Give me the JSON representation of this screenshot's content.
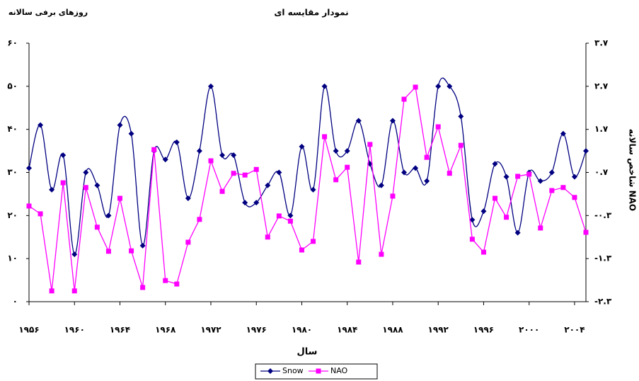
{
  "chart_data": {
    "type": "line",
    "title": "نمودار مقایسه ای",
    "y_label": "روزهای برفی سالانه",
    "y2_label": "شاخص سالانه NAO",
    "x_label": "سال",
    "x": [
      1956,
      1957,
      1958,
      1959,
      1960,
      1961,
      1962,
      1963,
      1964,
      1965,
      1966,
      1967,
      1968,
      1969,
      1970,
      1971,
      1972,
      1973,
      1974,
      1975,
      1976,
      1977,
      1978,
      1979,
      1980,
      1981,
      1982,
      1983,
      1984,
      1985,
      1986,
      1987,
      1988,
      1989,
      1990,
      1991,
      1992,
      1993,
      1994,
      1995,
      1996,
      1997,
      1998,
      1999,
      2000,
      2001,
      2002,
      2003,
      2004,
      2005
    ],
    "xlim": [
      1956,
      2005
    ],
    "xticks": [
      {
        "value": 1956,
        "label": "۱۹۵۶"
      },
      {
        "value": 1960,
        "label": "۱۹۶۰"
      },
      {
        "value": 1964,
        "label": "۱۹۶۴"
      },
      {
        "value": 1968,
        "label": "۱۹۶۸"
      },
      {
        "value": 1972,
        "label": "۱۹۷۲"
      },
      {
        "value": 1976,
        "label": "۱۹۷۶"
      },
      {
        "value": 1980,
        "label": "۱۹۸۰"
      },
      {
        "value": 1984,
        "label": "۱۹۸۴"
      },
      {
        "value": 1988,
        "label": "۱۹۸۸"
      },
      {
        "value": 1992,
        "label": "۱۹۹۲"
      },
      {
        "value": 1996,
        "label": "۱۹۹۶"
      },
      {
        "value": 2000,
        "label": "۲۰۰۰"
      },
      {
        "value": 2004,
        "label": "۲۰۰۴"
      }
    ],
    "ylim": [
      0,
      60
    ],
    "yticks": [
      {
        "value": 0,
        "label": "۰"
      },
      {
        "value": 10,
        "label": "۱۰"
      },
      {
        "value": 20,
        "label": "۲۰"
      },
      {
        "value": 30,
        "label": "۳۰"
      },
      {
        "value": 40,
        "label": "۴۰"
      },
      {
        "value": 50,
        "label": "۵۰"
      },
      {
        "value": 60,
        "label": "۶۰"
      }
    ],
    "y2lim": [
      -2.3,
      3.7
    ],
    "y2ticks": [
      {
        "value": -2.3,
        "label": "-۲.۳"
      },
      {
        "value": -1.3,
        "label": "-۱.۳"
      },
      {
        "value": -0.3,
        "label": "-۰.۳"
      },
      {
        "value": 0.7,
        "label": "۰.۷"
      },
      {
        "value": 1.7,
        "label": "۱.۷"
      },
      {
        "value": 2.7,
        "label": "۲.۷"
      },
      {
        "value": 3.7,
        "label": "۳.۷"
      }
    ],
    "series": [
      {
        "name": "Snow",
        "color": "#000080",
        "marker": "diamond",
        "smooth": true,
        "values": [
          31,
          41,
          26,
          34,
          11,
          30,
          27,
          20,
          41,
          39,
          13,
          35,
          33,
          37,
          24,
          35,
          50,
          34,
          34,
          23,
          23,
          27,
          30,
          20,
          36,
          26,
          50,
          35,
          35,
          42,
          32,
          27,
          42,
          30,
          31,
          28,
          50,
          50,
          43,
          19,
          21,
          32,
          29,
          16,
          30,
          28,
          30,
          39,
          29,
          35
        ]
      },
      {
        "name": "NAO",
        "color": "#ff00ff",
        "marker": "square",
        "axis": "y2",
        "values": [
          -0.08,
          -0.26,
          -2.05,
          0.46,
          -2.05,
          0.35,
          -0.57,
          -1.13,
          0.1,
          -1.12,
          -1.97,
          1.23,
          -1.81,
          -1.89,
          -0.92,
          -0.39,
          0.97,
          0.26,
          0.68,
          0.64,
          0.77,
          -0.8,
          -0.31,
          -0.43,
          -1.1,
          -0.9,
          1.53,
          0.53,
          0.82,
          -1.38,
          1.35,
          -1.2,
          0.15,
          2.4,
          2.68,
          1.05,
          1.76,
          0.68,
          1.33,
          -0.85,
          -1.15,
          0.1,
          -0.34,
          0.61,
          0.66,
          -0.59,
          0.28,
          0.35,
          0.12,
          -0.69
        ]
      }
    ]
  }
}
